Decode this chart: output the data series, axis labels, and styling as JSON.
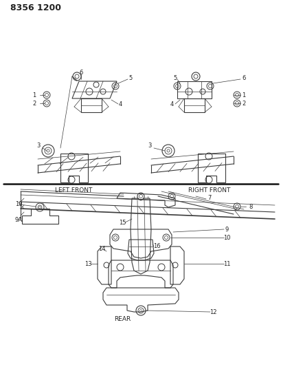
{
  "title_code": "8356 1200",
  "bg_color": "#ffffff",
  "line_color": "#3a3a3a",
  "label_color": "#222222",
  "left_front_label": "LEFT FRONT",
  "right_front_label": "RIGHT FRONT",
  "rear_label": "REAR",
  "font_size_title": 9,
  "font_size_label": 6.5,
  "font_size_number": 6.0
}
